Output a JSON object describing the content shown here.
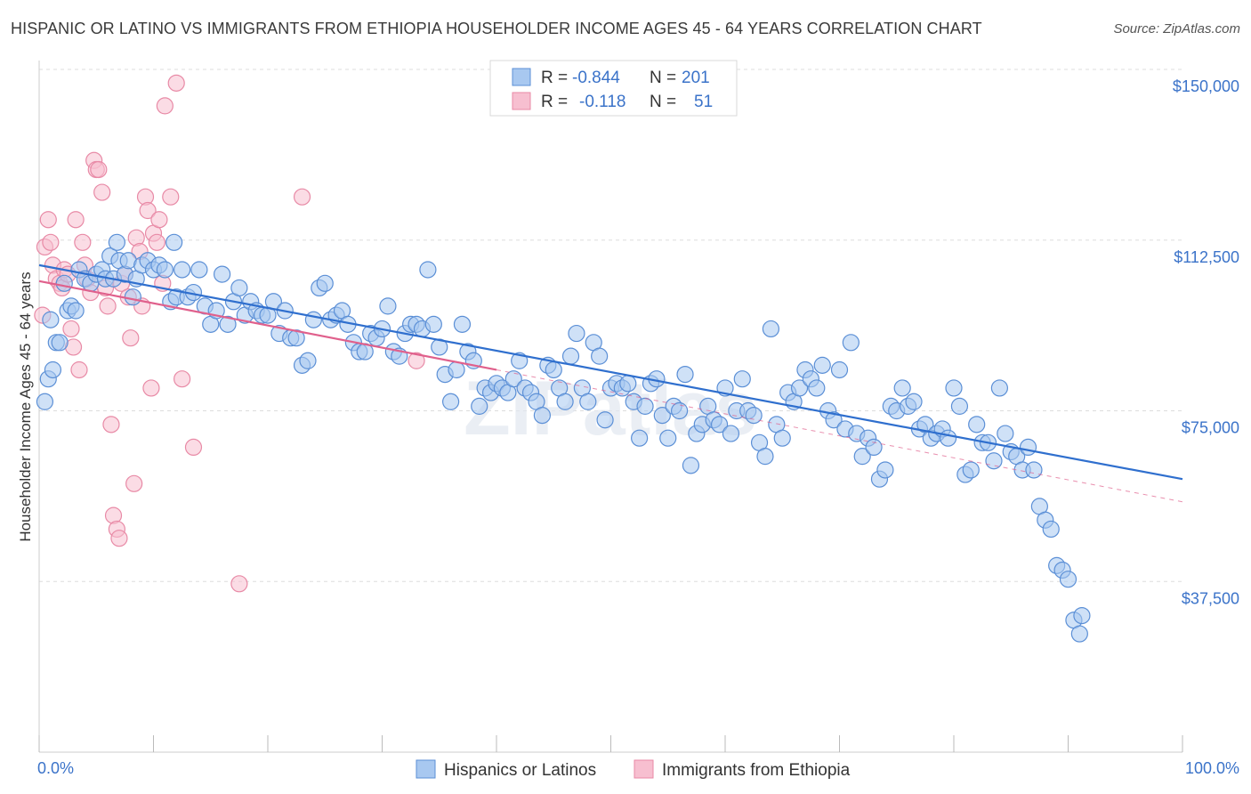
{
  "title": "HISPANIC OR LATINO VS IMMIGRANTS FROM ETHIOPIA HOUSEHOLDER INCOME AGES 45 - 64 YEARS CORRELATION CHART",
  "source": "Source: ZipAtlas.com",
  "watermark": "ZIPatlas",
  "colors": {
    "blue_fill": "#a8c8f0",
    "blue_stroke": "#5b8fd6",
    "blue_line": "#2f6fce",
    "pink_fill": "#f7bfd0",
    "pink_stroke": "#e88aa6",
    "pink_line": "#e0608c",
    "tick_text": "#3b73c9",
    "grid": "#dddddd"
  },
  "legend": {
    "rows": [
      {
        "r_label": "R =",
        "r_value": "-0.844",
        "n_label": "N =",
        "n_value": "201"
      },
      {
        "r_label": "R =",
        "r_value": "-0.118",
        "n_label": "N =",
        "n_value": "51"
      }
    ]
  },
  "chart_data": {
    "type": "scatter",
    "title": "HISPANIC OR LATINO VS IMMIGRANTS FROM ETHIOPIA HOUSEHOLDER INCOME AGES 45 - 64 YEARS CORRELATION CHART",
    "xlabel": "",
    "ylabel": "Householder Income Ages 45 - 64 years",
    "x_tick_labels": [
      "0.0%",
      "100.0%"
    ],
    "y_tick_labels": [
      "$37,500",
      "$75,000",
      "$112,500",
      "$150,000"
    ],
    "y_ticks": [
      37500,
      75000,
      112500,
      150000
    ],
    "xlim": [
      0,
      100
    ],
    "ylim": [
      0,
      155000
    ],
    "grid": true,
    "legend_position": "top-center",
    "series": [
      {
        "name": "Hispanics or Latinos",
        "color": "#a8c8f0",
        "r": -0.844,
        "n": 201,
        "trend": {
          "x": [
            0,
            100
          ],
          "y": [
            107000,
            60000
          ],
          "style": "solid"
        },
        "points": [
          [
            0.5,
            77000
          ],
          [
            0.8,
            82000
          ],
          [
            1.2,
            84000
          ],
          [
            1.5,
            90000
          ],
          [
            1.8,
            90000
          ],
          [
            2.2,
            103000
          ],
          [
            2.5,
            97000
          ],
          [
            2.8,
            98000
          ],
          [
            3.2,
            97000
          ],
          [
            3.5,
            106000
          ],
          [
            4.0,
            104000
          ],
          [
            4.5,
            103000
          ],
          [
            5.0,
            105000
          ],
          [
            5.5,
            106000
          ],
          [
            5.8,
            104000
          ],
          [
            6.2,
            109000
          ],
          [
            6.5,
            104000
          ],
          [
            6.8,
            112000
          ],
          [
            7.0,
            108000
          ],
          [
            7.5,
            105000
          ],
          [
            7.8,
            108000
          ],
          [
            8.2,
            100000
          ],
          [
            8.5,
            104000
          ],
          [
            9.0,
            107000
          ],
          [
            9.5,
            108000
          ],
          [
            10.0,
            106000
          ],
          [
            10.5,
            107000
          ],
          [
            11.0,
            106000
          ],
          [
            11.5,
            99000
          ],
          [
            11.8,
            112000
          ],
          [
            12.0,
            100000
          ],
          [
            12.5,
            106000
          ],
          [
            13.0,
            100000
          ],
          [
            13.5,
            101000
          ],
          [
            14.0,
            106000
          ],
          [
            14.5,
            98000
          ],
          [
            15.0,
            94000
          ],
          [
            15.5,
            97000
          ],
          [
            16.0,
            105000
          ],
          [
            16.5,
            94000
          ],
          [
            17.0,
            99000
          ],
          [
            17.5,
            102000
          ],
          [
            18.0,
            96000
          ],
          [
            18.5,
            99000
          ],
          [
            19.0,
            97000
          ],
          [
            19.5,
            96000
          ],
          [
            20.0,
            96000
          ],
          [
            20.5,
            99000
          ],
          [
            21.0,
            92000
          ],
          [
            21.5,
            97000
          ],
          [
            22.0,
            91000
          ],
          [
            22.5,
            91000
          ],
          [
            23.0,
            85000
          ],
          [
            23.5,
            86000
          ],
          [
            24.0,
            95000
          ],
          [
            24.5,
            102000
          ],
          [
            25.0,
            103000
          ],
          [
            25.5,
            95000
          ],
          [
            26.0,
            96000
          ],
          [
            26.5,
            97000
          ],
          [
            27.0,
            94000
          ],
          [
            27.5,
            90000
          ],
          [
            28.0,
            88000
          ],
          [
            28.5,
            88000
          ],
          [
            29.0,
            92000
          ],
          [
            29.5,
            91000
          ],
          [
            30.0,
            93000
          ],
          [
            30.5,
            98000
          ],
          [
            31.0,
            88000
          ],
          [
            31.5,
            87000
          ],
          [
            32.0,
            92000
          ],
          [
            32.5,
            94000
          ],
          [
            33.0,
            94000
          ],
          [
            33.5,
            93000
          ],
          [
            34.0,
            106000
          ],
          [
            34.5,
            94000
          ],
          [
            35.0,
            89000
          ],
          [
            35.5,
            83000
          ],
          [
            36.0,
            77000
          ],
          [
            36.5,
            84000
          ],
          [
            37.0,
            94000
          ],
          [
            37.5,
            88000
          ],
          [
            38.0,
            86000
          ],
          [
            38.5,
            76000
          ],
          [
            39.0,
            80000
          ],
          [
            39.5,
            79000
          ],
          [
            40.0,
            81000
          ],
          [
            40.5,
            80000
          ],
          [
            41.0,
            79000
          ],
          [
            41.5,
            82000
          ],
          [
            42.0,
            86000
          ],
          [
            42.5,
            80000
          ],
          [
            43.0,
            79000
          ],
          [
            43.5,
            77000
          ],
          [
            44.0,
            74000
          ],
          [
            44.5,
            85000
          ],
          [
            45.0,
            84000
          ],
          [
            45.5,
            80000
          ],
          [
            46.0,
            77000
          ],
          [
            46.5,
            87000
          ],
          [
            47.0,
            92000
          ],
          [
            47.5,
            80000
          ],
          [
            48.0,
            77000
          ],
          [
            48.5,
            90000
          ],
          [
            49.0,
            87000
          ],
          [
            49.5,
            73000
          ],
          [
            50.0,
            80000
          ],
          [
            50.5,
            81000
          ],
          [
            51.0,
            80000
          ],
          [
            51.5,
            81000
          ],
          [
            52.0,
            77000
          ],
          [
            52.5,
            69000
          ],
          [
            53.0,
            76000
          ],
          [
            53.5,
            81000
          ],
          [
            54.0,
            82000
          ],
          [
            54.5,
            74000
          ],
          [
            55.0,
            69000
          ],
          [
            55.5,
            76000
          ],
          [
            56.0,
            75000
          ],
          [
            56.5,
            83000
          ],
          [
            57.0,
            63000
          ],
          [
            57.5,
            70000
          ],
          [
            58.0,
            72000
          ],
          [
            58.5,
            76000
          ],
          [
            59.0,
            73000
          ],
          [
            59.5,
            72000
          ],
          [
            60.0,
            80000
          ],
          [
            60.5,
            70000
          ],
          [
            61.0,
            75000
          ],
          [
            61.5,
            82000
          ],
          [
            62.0,
            75000
          ],
          [
            62.5,
            74000
          ],
          [
            63.0,
            68000
          ],
          [
            63.5,
            65000
          ],
          [
            64.0,
            93000
          ],
          [
            64.5,
            72000
          ],
          [
            65.0,
            69000
          ],
          [
            65.5,
            79000
          ],
          [
            66.0,
            77000
          ],
          [
            66.5,
            80000
          ],
          [
            67.0,
            84000
          ],
          [
            67.5,
            82000
          ],
          [
            68.0,
            80000
          ],
          [
            68.5,
            85000
          ],
          [
            69.0,
            75000
          ],
          [
            69.5,
            73000
          ],
          [
            70.0,
            84000
          ],
          [
            70.5,
            71000
          ],
          [
            71.0,
            90000
          ],
          [
            71.5,
            70000
          ],
          [
            72.0,
            65000
          ],
          [
            72.5,
            69000
          ],
          [
            73.0,
            67000
          ],
          [
            73.5,
            60000
          ],
          [
            74.0,
            62000
          ],
          [
            74.5,
            76000
          ],
          [
            75.0,
            75000
          ],
          [
            75.5,
            80000
          ],
          [
            76.0,
            76000
          ],
          [
            76.5,
            77000
          ],
          [
            77.0,
            71000
          ],
          [
            77.5,
            72000
          ],
          [
            78.0,
            69000
          ],
          [
            78.5,
            70000
          ],
          [
            79.0,
            71000
          ],
          [
            79.5,
            69000
          ],
          [
            80.0,
            80000
          ],
          [
            80.5,
            76000
          ],
          [
            81.0,
            61000
          ],
          [
            81.5,
            62000
          ],
          [
            82.0,
            72000
          ],
          [
            82.5,
            68000
          ],
          [
            83.0,
            68000
          ],
          [
            83.5,
            64000
          ],
          [
            84.0,
            80000
          ],
          [
            84.5,
            70000
          ],
          [
            85.0,
            66000
          ],
          [
            85.5,
            65000
          ],
          [
            86.0,
            62000
          ],
          [
            86.5,
            67000
          ],
          [
            87.0,
            62000
          ],
          [
            87.5,
            54000
          ],
          [
            88.0,
            51000
          ],
          [
            88.5,
            49000
          ],
          [
            89.0,
            41000
          ],
          [
            89.5,
            40000
          ],
          [
            90.0,
            38000
          ],
          [
            90.5,
            29000
          ],
          [
            91.0,
            26000
          ],
          [
            91.2,
            30000
          ],
          [
            1.0,
            95000
          ]
        ]
      },
      {
        "name": "Immigrants from Ethiopia",
        "color": "#f7bfd0",
        "r": -0.118,
        "n": 51,
        "trend": {
          "x": [
            0,
            40
          ],
          "y": [
            103500,
            84000
          ],
          "style": "solid",
          "extended_x": [
            40,
            100
          ],
          "extended_y": [
            84000,
            55000
          ],
          "extended_style": "dashed"
        },
        "points": [
          [
            0.3,
            96000
          ],
          [
            0.5,
            111000
          ],
          [
            0.8,
            117000
          ],
          [
            1.0,
            112000
          ],
          [
            1.2,
            107000
          ],
          [
            1.5,
            104000
          ],
          [
            1.8,
            103000
          ],
          [
            2.0,
            102000
          ],
          [
            2.2,
            106000
          ],
          [
            2.5,
            105000
          ],
          [
            2.8,
            93000
          ],
          [
            3.0,
            89000
          ],
          [
            3.2,
            117000
          ],
          [
            3.5,
            84000
          ],
          [
            3.8,
            112000
          ],
          [
            4.0,
            107000
          ],
          [
            4.2,
            104000
          ],
          [
            4.5,
            101000
          ],
          [
            4.8,
            130000
          ],
          [
            5.0,
            128000
          ],
          [
            5.2,
            128000
          ],
          [
            5.5,
            123000
          ],
          [
            5.8,
            102000
          ],
          [
            6.0,
            98000
          ],
          [
            6.3,
            72000
          ],
          [
            6.5,
            52000
          ],
          [
            6.8,
            49000
          ],
          [
            7.0,
            47000
          ],
          [
            7.2,
            103000
          ],
          [
            7.5,
            105000
          ],
          [
            7.8,
            100000
          ],
          [
            8.0,
            91000
          ],
          [
            8.3,
            59000
          ],
          [
            8.5,
            113000
          ],
          [
            8.8,
            110000
          ],
          [
            9.0,
            98000
          ],
          [
            9.3,
            122000
          ],
          [
            9.5,
            119000
          ],
          [
            9.8,
            80000
          ],
          [
            10.0,
            114000
          ],
          [
            10.3,
            112000
          ],
          [
            10.5,
            117000
          ],
          [
            10.8,
            103000
          ],
          [
            11.0,
            142000
          ],
          [
            11.5,
            122000
          ],
          [
            12.0,
            147000
          ],
          [
            12.5,
            82000
          ],
          [
            13.5,
            67000
          ],
          [
            17.5,
            37000
          ],
          [
            23.0,
            122000
          ],
          [
            33.0,
            86000
          ]
        ]
      }
    ]
  },
  "bottom_legend": [
    {
      "label": "Hispanics or Latinos"
    },
    {
      "label": "Immigrants from Ethiopia"
    }
  ]
}
